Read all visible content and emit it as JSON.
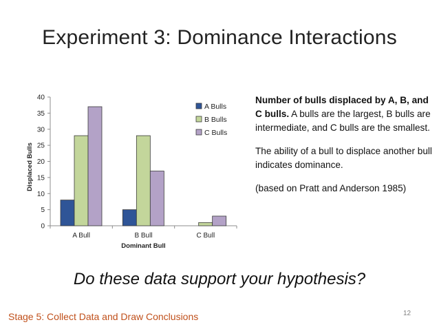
{
  "slide": {
    "title": "Experiment 3: Dominance Interactions",
    "description_bold": "Number of bulls displaced by A, B, and C bulls.",
    "description_rest": " A bulls are the largest, B bulls are intermediate, and C bulls are the smallest.",
    "paragraph2": "The ability of a bull to displace another bull indicates dominance.",
    "paragraph3": "(based on Pratt and Anderson 1985)",
    "question": "Do these data support your hypothesis?",
    "footer": "Stage 5: Collect Data and Draw Conclusions",
    "page_number": "12"
  },
  "chart_data": {
    "type": "bar",
    "categories": [
      "A Bull",
      "B Bull",
      "C Bull"
    ],
    "series": [
      {
        "name": "A Bulls",
        "values": [
          8,
          5,
          0
        ],
        "color": "#2f5597"
      },
      {
        "name": "B Bulls",
        "values": [
          28,
          28,
          1
        ],
        "color": "#c3d69b"
      },
      {
        "name": "C Bulls",
        "values": [
          37,
          17,
          3
        ],
        "color": "#b3a2c7"
      }
    ],
    "xlabel": "Dominant Bull",
    "ylabel": "Displaced Bulls",
    "ylim": [
      0,
      40
    ],
    "yticks": [
      0,
      5,
      10,
      15,
      20,
      25,
      30,
      35,
      40
    ],
    "grid": false,
    "legend_position": "top-right"
  }
}
